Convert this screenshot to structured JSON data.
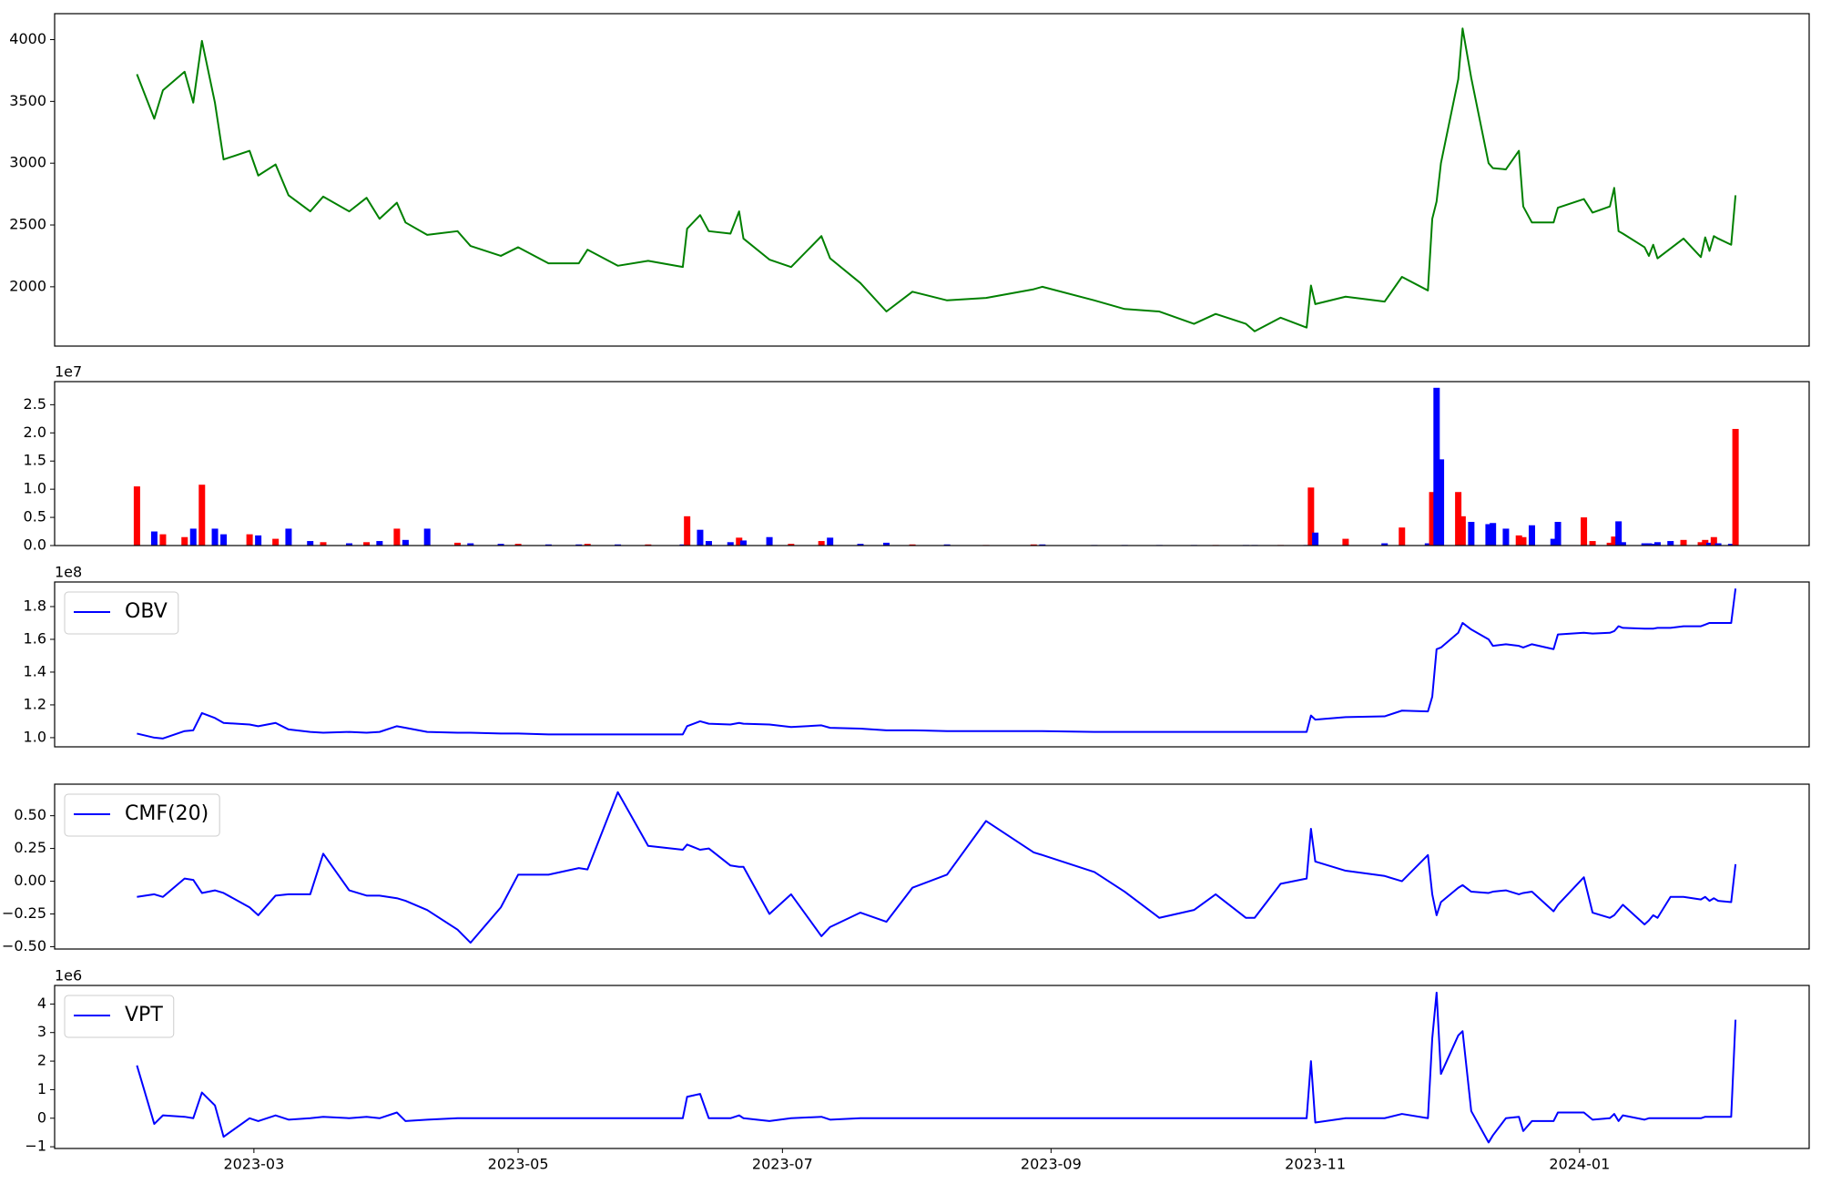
{
  "chart_data": {
    "xlim": [
      "2023-01-14",
      "2024-02-23"
    ],
    "xticks": [
      {
        "value": "2023-03-01",
        "label": "2023-03"
      },
      {
        "value": "2023-05-01",
        "label": "2023-05"
      },
      {
        "value": "2023-07-01",
        "label": "2023-07"
      },
      {
        "value": "2023-09-01",
        "label": "2023-09"
      },
      {
        "value": "2023-11-01",
        "label": "2023-11"
      },
      {
        "value": "2024-01-01",
        "label": "2024-01"
      }
    ],
    "x": [
      "2023-02-02",
      "2023-02-06",
      "2023-02-08",
      "2023-02-13",
      "2023-02-15",
      "2023-02-17",
      "2023-02-20",
      "2023-02-22",
      "2023-02-28",
      "2023-03-02",
      "2023-03-06",
      "2023-03-09",
      "2023-03-14",
      "2023-03-17",
      "2023-03-23",
      "2023-03-27",
      "2023-03-30",
      "2023-04-03",
      "2023-04-05",
      "2023-04-10",
      "2023-04-17",
      "2023-04-20",
      "2023-04-27",
      "2023-05-01",
      "2023-05-08",
      "2023-05-15",
      "2023-05-17",
      "2023-05-24",
      "2023-05-31",
      "2023-06-08",
      "2023-06-09",
      "2023-06-12",
      "2023-06-14",
      "2023-06-19",
      "2023-06-21",
      "2023-06-22",
      "2023-06-28",
      "2023-07-03",
      "2023-07-10",
      "2023-07-12",
      "2023-07-19",
      "2023-07-25",
      "2023-07-31",
      "2023-08-08",
      "2023-08-17",
      "2023-08-28",
      "2023-08-30",
      "2023-09-11",
      "2023-09-18",
      "2023-09-26",
      "2023-10-04",
      "2023-10-09",
      "2023-10-16",
      "2023-10-18",
      "2023-10-24",
      "2023-10-30",
      "2023-10-31",
      "2023-11-01",
      "2023-11-08",
      "2023-11-17",
      "2023-11-21",
      "2023-11-27",
      "2023-11-28",
      "2023-11-29",
      "2023-11-30",
      "2023-12-04",
      "2023-12-05",
      "2023-12-07",
      "2023-12-11",
      "2023-12-12",
      "2023-12-15",
      "2023-12-18",
      "2023-12-19",
      "2023-12-21",
      "2023-12-26",
      "2023-12-27",
      "2024-01-02",
      "2024-01-04",
      "2024-01-08",
      "2024-01-09",
      "2024-01-10",
      "2024-01-11",
      "2024-01-16",
      "2024-01-17",
      "2024-01-18",
      "2024-01-19",
      "2024-01-22",
      "2024-01-25",
      "2024-01-29",
      "2024-01-30",
      "2024-01-31",
      "2024-02-01",
      "2024-02-02",
      "2024-02-05",
      "2024-02-06"
    ],
    "panels": [
      {
        "type": "line",
        "ylim": [
          1520,
          4210
        ],
        "yticks": [
          2000,
          2500,
          3000,
          3500,
          4000
        ],
        "series": [
          {
            "color": "#008000",
            "values": [
              3720,
              3360,
              3590,
              3740,
              3490,
              3990,
              3490,
              3030,
              3100,
              2900,
              2990,
              2740,
              2610,
              2730,
              2610,
              2720,
              2550,
              2680,
              2520,
              2420,
              2450,
              2330,
              2250,
              2320,
              2190,
              2190,
              2300,
              2170,
              2210,
              2160,
              2470,
              2580,
              2450,
              2430,
              2610,
              2390,
              2220,
              2160,
              2410,
              2230,
              2030,
              1800,
              1960,
              1890,
              1910,
              1980,
              2000,
              1890,
              1820,
              1800,
              1700,
              1780,
              1700,
              1640,
              1750,
              1670,
              2010,
              1860,
              1920,
              1880,
              2080,
              1970,
              2550,
              2690,
              3000,
              3680,
              4090,
              3690,
              3000,
              2960,
              2950,
              3100,
              2650,
              2520,
              2520,
              2640,
              2710,
              2600,
              2650,
              2800,
              2450,
              2430,
              2320,
              2250,
              2340,
              2230,
              2310,
              2390,
              2240,
              2400,
              2290,
              2410,
              2390,
              2340,
              2740
            ]
          }
        ]
      },
      {
        "type": "bar",
        "ylim": [
          0,
          29100000
        ],
        "offset_label": "1e7",
        "yticks": [
          {
            "value": 0,
            "label": "0.0"
          },
          {
            "value": 5000000,
            "label": "0.5"
          },
          {
            "value": 10000000,
            "label": "1.0"
          },
          {
            "value": 15000000,
            "label": "1.5"
          },
          {
            "value": 20000000,
            "label": "2.0"
          },
          {
            "value": 25000000,
            "label": "2.5"
          }
        ],
        "values": [
          10500000,
          2500000,
          2000000,
          1500000,
          3000000,
          10800000,
          3000000,
          2000000,
          2000000,
          1800000,
          1200000,
          3000000,
          800000,
          600000,
          400000,
          600000,
          800000,
          3000000,
          1000000,
          3000000,
          500000,
          400000,
          300000,
          300000,
          200000,
          200000,
          300000,
          200000,
          200000,
          200000,
          5200000,
          2800000,
          800000,
          600000,
          1400000,
          900000,
          1500000,
          300000,
          800000,
          1400000,
          300000,
          500000,
          200000,
          200000,
          100000,
          200000,
          200000,
          100000,
          100000,
          100000,
          100000,
          100000,
          100000,
          100000,
          100000,
          100000,
          10300000,
          2300000,
          1200000,
          400000,
          3200000,
          400000,
          9500000,
          28000000,
          15300000,
          9500000,
          5200000,
          4200000,
          3800000,
          4000000,
          3000000,
          1800000,
          1500000,
          3600000,
          1200000,
          4200000,
          5000000,
          800000,
          500000,
          1600000,
          4300000,
          600000,
          400000,
          400000,
          300000,
          600000,
          800000,
          1000000,
          600000,
          1000000,
          500000,
          1500000,
          400000,
          300000,
          20700000
        ],
        "colors": [
          "red",
          "blue",
          "red",
          "red",
          "blue",
          "red",
          "blue",
          "blue",
          "red",
          "blue",
          "red",
          "blue",
          "blue",
          "red",
          "blue",
          "red",
          "blue",
          "red",
          "blue",
          "blue",
          "red",
          "blue",
          "blue",
          "red",
          "blue",
          "blue",
          "red",
          "blue",
          "red",
          "blue",
          "red",
          "blue",
          "blue",
          "blue",
          "red",
          "blue",
          "blue",
          "red",
          "red",
          "blue",
          "blue",
          "blue",
          "red",
          "blue",
          "red",
          "red",
          "blue",
          "blue",
          "blue",
          "blue",
          "blue",
          "red",
          "blue",
          "blue",
          "red",
          "blue",
          "red",
          "blue",
          "red",
          "blue",
          "red",
          "blue",
          "red",
          "blue",
          "blue",
          "red",
          "red",
          "blue",
          "blue",
          "blue",
          "blue",
          "red",
          "red",
          "blue",
          "blue",
          "blue",
          "red",
          "red",
          "red",
          "red",
          "blue",
          "blue",
          "blue",
          "blue",
          "blue",
          "blue",
          "blue",
          "red",
          "red",
          "red",
          "blue",
          "red",
          "blue",
          "blue",
          "red"
        ]
      },
      {
        "type": "line",
        "ylim": [
          94400000,
          195000000
        ],
        "offset_label": "1e8",
        "legend": "upper left",
        "yticks": [
          {
            "value": 100000000,
            "label": "1.0"
          },
          {
            "value": 120000000,
            "label": "1.2"
          },
          {
            "value": 140000000,
            "label": "1.4"
          },
          {
            "value": 160000000,
            "label": "1.6"
          },
          {
            "value": 180000000,
            "label": "1.8"
          }
        ],
        "series": [
          {
            "name": "OBV",
            "color": "#0000ff",
            "values": [
              102500000,
              100000000,
              99500000,
              104000000,
              104500000,
              115000000,
              112000000,
              109000000,
              108000000,
              107000000,
              109000000,
              105000000,
              103500000,
              103000000,
              103500000,
              103000000,
              103500000,
              107000000,
              106000000,
              103500000,
              103000000,
              103000000,
              102500000,
              102500000,
              102000000,
              102000000,
              102000000,
              102000000,
              102000000,
              102000000,
              107000000,
              110000000,
              108500000,
              108000000,
              109000000,
              108500000,
              108000000,
              106500000,
              107500000,
              106000000,
              105500000,
              104500000,
              104500000,
              104000000,
              104000000,
              104000000,
              104000000,
              103500000,
              103500000,
              103500000,
              103500000,
              103500000,
              103500000,
              103500000,
              103500000,
              103500000,
              113500000,
              111000000,
              112500000,
              113000000,
              116500000,
              116000000,
              125000000,
              154000000,
              155000000,
              164000000,
              170000000,
              166000000,
              160000000,
              156000000,
              157000000,
              156000000,
              155000000,
              157000000,
              154000000,
              163000000,
              164000000,
              163500000,
              164000000,
              165000000,
              168000000,
              167000000,
              166500000,
              166500000,
              166500000,
              167000000,
              167000000,
              168000000,
              168000000,
              169000000,
              170000000,
              170000000,
              170000000,
              170000000,
              191000000
            ]
          }
        ]
      },
      {
        "type": "line",
        "ylim": [
          -0.518,
          0.741
        ],
        "legend": "upper left",
        "yticks": [
          {
            "value": -0.5,
            "label": "−0.50"
          },
          {
            "value": -0.25,
            "label": "−0.25"
          },
          {
            "value": 0,
            "label": "0.00"
          },
          {
            "value": 0.25,
            "label": "0.25"
          },
          {
            "value": 0.5,
            "label": "0.50"
          }
        ],
        "series": [
          {
            "name": "CMF(20)",
            "color": "#0000ff",
            "values": [
              -0.12,
              -0.1,
              -0.12,
              0.02,
              0.01,
              -0.09,
              -0.07,
              -0.09,
              -0.2,
              -0.26,
              -0.11,
              -0.1,
              -0.1,
              0.21,
              -0.07,
              -0.11,
              -0.11,
              -0.13,
              -0.15,
              -0.22,
              -0.37,
              -0.47,
              -0.2,
              0.05,
              0.05,
              0.1,
              0.09,
              0.68,
              0.27,
              0.24,
              0.28,
              0.24,
              0.25,
              0.12,
              0.11,
              0.11,
              -0.25,
              -0.1,
              -0.42,
              -0.35,
              -0.24,
              -0.31,
              -0.05,
              0.05,
              0.46,
              0.22,
              0.2,
              0.07,
              -0.08,
              -0.28,
              -0.22,
              -0.1,
              -0.28,
              -0.28,
              -0.02,
              0.02,
              0.4,
              0.15,
              0.08,
              0.04,
              0.0,
              0.2,
              -0.1,
              -0.26,
              -0.16,
              -0.05,
              -0.03,
              -0.08,
              -0.09,
              -0.08,
              -0.07,
              -0.1,
              -0.09,
              -0.08,
              -0.23,
              -0.18,
              0.03,
              -0.24,
              -0.28,
              -0.26,
              -0.22,
              -0.18,
              -0.33,
              -0.3,
              -0.26,
              -0.28,
              -0.12,
              -0.12,
              -0.14,
              -0.12,
              -0.15,
              -0.13,
              -0.15,
              -0.16,
              0.13
            ]
          }
        ]
      },
      {
        "type": "line",
        "ylim": [
          -1060000,
          4650000
        ],
        "offset_label": "1e6",
        "legend": "upper left",
        "yticks": [
          {
            "value": -1000000,
            "label": "−1"
          },
          0,
          {
            "value": 1000000,
            "label": "1"
          },
          {
            "value": 2000000,
            "label": "2"
          },
          {
            "value": 3000000,
            "label": "3"
          },
          {
            "value": 4000000,
            "label": "4"
          }
        ],
        "series": [
          {
            "name": "VPT",
            "color": "#0000ff",
            "values": [
              1850000,
              -200000,
              100000,
              50000,
              0,
              900000,
              450000,
              -650000,
              0,
              -100000,
              100000,
              -50000,
              0,
              50000,
              0,
              50000,
              0,
              200000,
              -100000,
              -50000,
              0,
              0,
              0,
              0,
              0,
              0,
              0,
              0,
              0,
              0,
              750000,
              850000,
              0,
              0,
              100000,
              0,
              -100000,
              0,
              50000,
              -50000,
              0,
              0,
              0,
              0,
              0,
              0,
              0,
              0,
              0,
              0,
              0,
              0,
              0,
              0,
              0,
              0,
              2000000,
              -150000,
              0,
              0,
              150000,
              0,
              2800000,
              4400000,
              1550000,
              2900000,
              3050000,
              250000,
              -850000,
              -600000,
              0,
              50000,
              -450000,
              -100000,
              -100000,
              200000,
              200000,
              -50000,
              0,
              150000,
              -100000,
              100000,
              -50000,
              0,
              0,
              0,
              0,
              0,
              0,
              50000,
              50000,
              50000,
              50000,
              50000,
              3450000
            ]
          }
        ]
      }
    ]
  }
}
